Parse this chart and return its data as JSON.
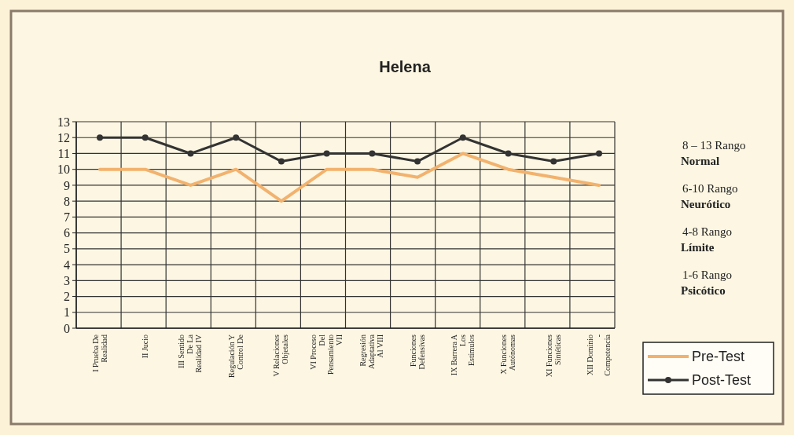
{
  "chart_data": {
    "type": "line",
    "title": "Helena",
    "categories": [
      "I Prueba De Realidad",
      "II Jucio",
      "III Sentido De La Realidad IV",
      "Regulación Y Control De",
      "V Relaciones Objetales",
      "VI Proceso Del Pensamiento VII",
      "Regresión Adaptativa Al VIII",
      "Funciones Defensivas",
      "IX Barrera A Los Estímulos",
      "X Funciones Autónomas",
      "XI Funciones Sintéticas",
      "XII Dominio - Competencia"
    ],
    "series": [
      {
        "name": "Pre-Test",
        "color": "#f2b26e",
        "marker": "none",
        "values": [
          10,
          10,
          9,
          10,
          8,
          10,
          10,
          9.5,
          11,
          10,
          9.5,
          9
        ]
      },
      {
        "name": "Post-Test",
        "color": "#333333",
        "marker": "circle",
        "values": [
          12,
          12,
          11,
          12,
          10.5,
          11,
          11,
          10.5,
          12,
          11,
          10.5,
          11
        ]
      }
    ],
    "ylim": [
      0,
      13
    ],
    "yticks": [
      0,
      1,
      2,
      3,
      4,
      5,
      6,
      7,
      8,
      9,
      10,
      11,
      12,
      13
    ],
    "grid": true,
    "legend": "bottom right",
    "annotations": [
      "8 – 13 Rango Normal",
      "6-10 Rango Neurótico",
      "4-8 Rango Límite",
      "1-6 Rango Psicótico"
    ]
  }
}
